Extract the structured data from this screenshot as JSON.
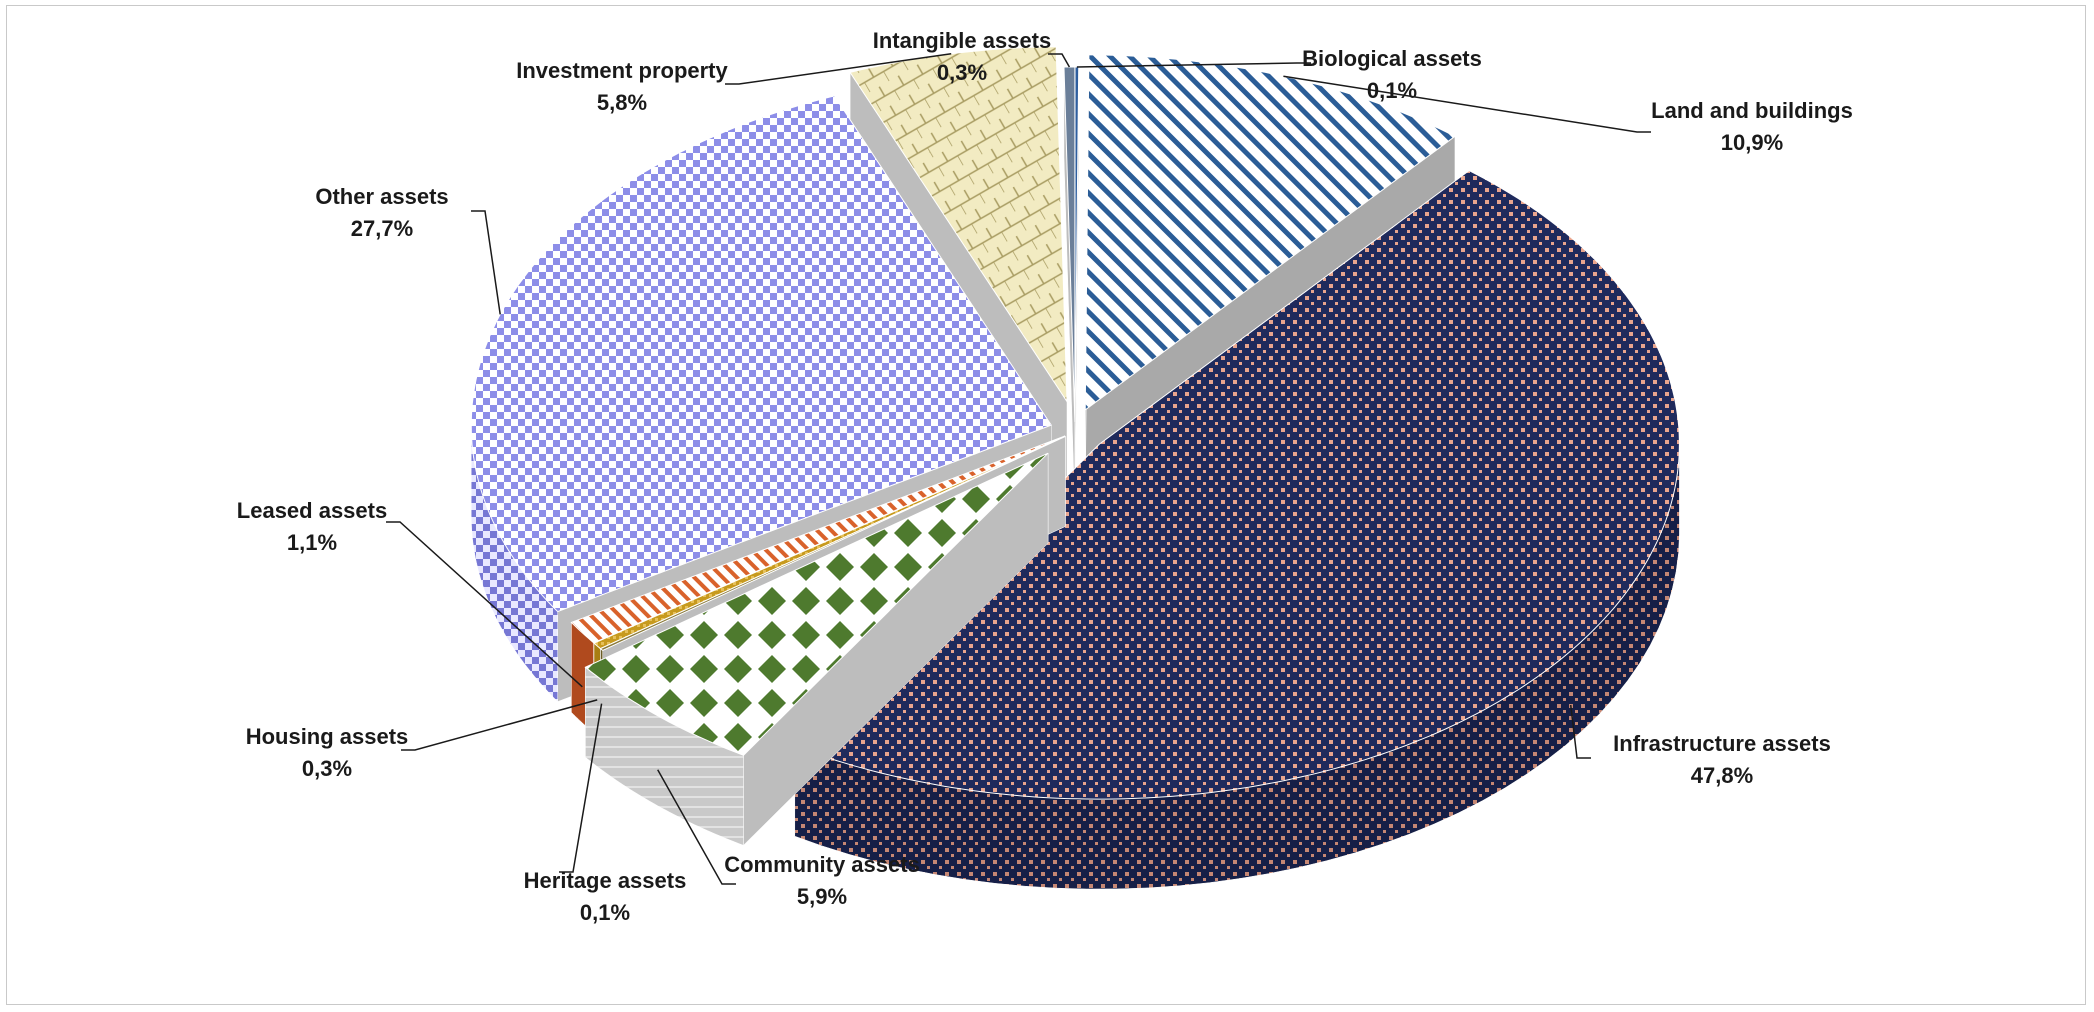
{
  "chart_data": {
    "type": "pie",
    "title": "",
    "slices": [
      {
        "label": "Biological assets",
        "value": 0.1,
        "value_label": "0,1%",
        "color": "#2e5e9e"
      },
      {
        "label": "Land and buildings",
        "value": 10.9,
        "value_label": "10,9%",
        "color": "#2b5d97"
      },
      {
        "label": "Infrastructure assets",
        "value": 47.8,
        "value_label": "47,8%",
        "color": "#1f2a5c"
      },
      {
        "label": "Community assets",
        "value": 5.9,
        "value_label": "5,9%",
        "color": "#4e7a2e"
      },
      {
        "label": "Heritage assets",
        "value": 0.1,
        "value_label": "0,1%",
        "color": "#7a6a2a"
      },
      {
        "label": "Housing assets",
        "value": 0.3,
        "value_label": "0,3%",
        "color": "#c79a1e"
      },
      {
        "label": "Leased assets",
        "value": 1.1,
        "value_label": "1,1%",
        "color": "#d9622b"
      },
      {
        "label": "Other assets",
        "value": 27.7,
        "value_label": "27,7%",
        "color": "#8d8ee8"
      },
      {
        "label": "Investment property",
        "value": 5.8,
        "value_label": "5,8%",
        "color": "#d9cf98"
      },
      {
        "label": "Intangible assets",
        "value": 0.3,
        "value_label": "0,3%",
        "color": "#5a6f8a"
      }
    ],
    "legend": "none",
    "style": "3d-exploded-pie",
    "data_labels": "outside-with-leader-lines"
  }
}
